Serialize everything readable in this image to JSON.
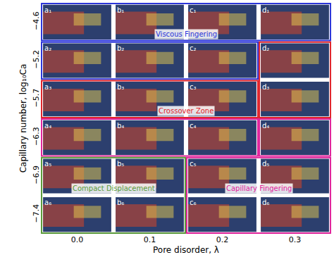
{
  "chart_data": {
    "type": "panel_grid",
    "x_title": "Pore disorder, λ",
    "y_title": "Capillary number, log₁₀Ca",
    "x_categories": [
      "0.0",
      "0.1",
      "0.2",
      "0.3"
    ],
    "y_categories": [
      "−4.6",
      "−5.2",
      "−5.7",
      "−6.3",
      "−6.9",
      "−7.4"
    ],
    "panels": [
      [
        "a₁",
        "b₁",
        "c₁",
        "d₁"
      ],
      [
        "a₂",
        "b₂",
        "c₂",
        "d₂"
      ],
      [
        "a₃",
        "b₃",
        "c₃",
        "d₃"
      ],
      [
        "a₄",
        "b₄",
        "c₄",
        "d₄"
      ],
      [
        "a₅",
        "b₅",
        "c₅",
        "d₅"
      ],
      [
        "a₆",
        "b₆",
        "c₆",
        "d₆"
      ]
    ],
    "regions": [
      {
        "name": "Viscous Fingering",
        "color": "#2b35d9",
        "label_at": "b₁",
        "blocks": [
          [
            "a₁",
            "d₁"
          ],
          [
            "a₂",
            "c₂"
          ]
        ]
      },
      {
        "name": "Crossover Zone",
        "color": "#e0242b",
        "label_at": "b₃",
        "blocks": [
          [
            "a₃",
            "c₃"
          ],
          [
            "d₂",
            "d₃"
          ]
        ]
      },
      {
        "name": "Capillary Fingering",
        "color": "#e0239b",
        "label_at": "c₅",
        "blocks": [
          [
            "a₄",
            "c₄"
          ],
          [
            "d₄",
            "d₄"
          ],
          [
            "c₅",
            "d₆"
          ]
        ]
      },
      {
        "name": "Compact Displacement",
        "color": "#5a9a3a",
        "label_at": "a₅",
        "blocks": [
          [
            "a₅",
            "b₆"
          ]
        ]
      }
    ]
  }
}
